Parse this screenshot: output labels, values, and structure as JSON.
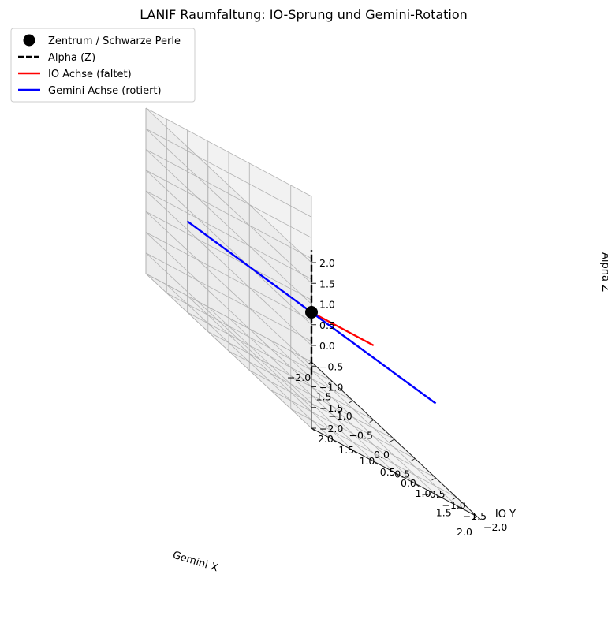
{
  "chart_data": {
    "type": "line3d",
    "title": "LANIF Raumfaltung: IO-Sprung und Gemini-Rotation",
    "xlabel": "Gemini X",
    "ylabel": "IO Y",
    "zlabel": "Alpha Z",
    "xlim": [
      -2,
      2
    ],
    "ylim": [
      -2,
      2
    ],
    "zlim": [
      -2,
      2
    ],
    "x_ticks": [
      "−2.0",
      "−1.5",
      "−1.0",
      "−0.5",
      "0.0",
      "0.5",
      "1.0",
      "1.5",
      "2.0"
    ],
    "y_ticks": [
      "−2.0",
      "−1.5",
      "−1.0",
      "−0.5",
      "0.0",
      "0.5",
      "1.0",
      "1.5",
      "2.0"
    ],
    "z_ticks": [
      "−2.0",
      "−1.5",
      "−1.0",
      "−0.5",
      "0.0",
      "0.5",
      "1.0",
      "1.5",
      "2.0"
    ],
    "grid": true,
    "legend_position": "top-left",
    "series": [
      {
        "name": "Zentrum / Schwarze Perle",
        "kind": "point",
        "color": "#000000",
        "points": [
          [
            0,
            0,
            0
          ]
        ]
      },
      {
        "name": "Alpha (Z)",
        "kind": "line",
        "style": "dashed",
        "color": "#000000",
        "points": [
          [
            0,
            0,
            -1.5
          ],
          [
            0,
            0,
            1.5
          ]
        ]
      },
      {
        "name": "IO Achse (faltet)",
        "kind": "line",
        "style": "solid",
        "color": "#ff0000",
        "points": [
          [
            0,
            0,
            0
          ],
          [
            0,
            -1.5,
            0
          ]
        ]
      },
      {
        "name": "Gemini Achse (rotiert)",
        "kind": "line",
        "style": "solid",
        "color": "#0000ff",
        "points": [
          [
            -1.5,
            1.5,
            0
          ],
          [
            1.5,
            -1.5,
            0
          ]
        ]
      }
    ]
  }
}
